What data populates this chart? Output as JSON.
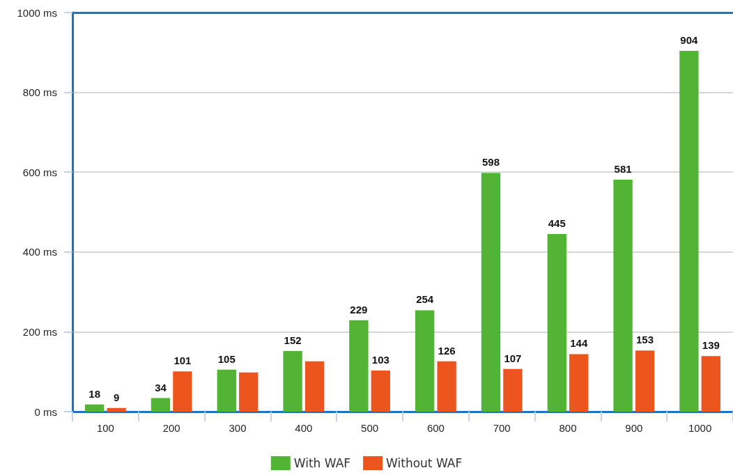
{
  "chart_data": {
    "type": "bar",
    "categories": [
      "100",
      "200",
      "300",
      "400",
      "500",
      "600",
      "700",
      "800",
      "900",
      "1000"
    ],
    "series": [
      {
        "name": "With WAF",
        "color": "#52b335",
        "values": [
          18,
          34,
          105,
          152,
          229,
          254,
          598,
          445,
          581,
          904
        ],
        "value_labels": [
          "18",
          "34",
          "105",
          "152",
          "229",
          "254",
          "598",
          "445",
          "581",
          "904"
        ]
      },
      {
        "name": "Without WAF",
        "color": "#ec561e",
        "values": [
          9,
          101,
          98,
          126,
          103,
          126,
          107,
          144,
          153,
          139
        ],
        "value_labels": [
          "9",
          "101",
          null,
          null,
          "103",
          "126",
          "107",
          "144",
          "153",
          "139"
        ]
      }
    ],
    "ylim": [
      0,
      1000
    ],
    "yticks": [
      {
        "value": 0,
        "label": "0 ms"
      },
      {
        "value": 200,
        "label": "200 ms"
      },
      {
        "value": 400,
        "label": "400 ms"
      },
      {
        "value": 600,
        "label": "600 ms"
      },
      {
        "value": 800,
        "label": "800 ms"
      },
      {
        "value": 1000,
        "label": "1000 ms"
      }
    ],
    "grid": "y",
    "legend": "bottom"
  }
}
